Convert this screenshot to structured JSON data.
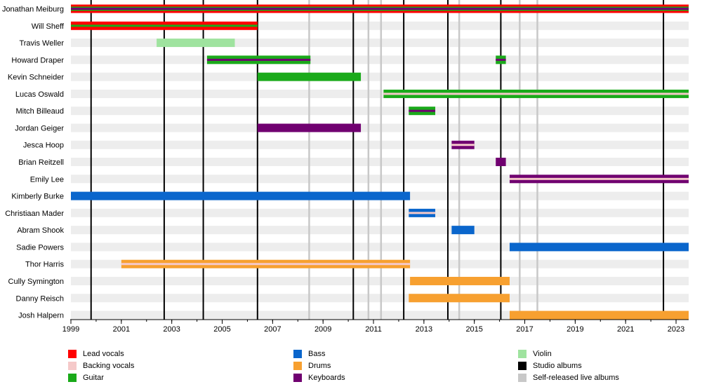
{
  "chart_data": {
    "type": "timeline",
    "x_range": [
      1999,
      2023.5
    ],
    "x_ticks": [
      1999,
      2001,
      2003,
      2005,
      2007,
      2009,
      2011,
      2013,
      2015,
      2017,
      2019,
      2021,
      2023
    ],
    "grid": true,
    "colors": {
      "lead_vocals": "#ff0000",
      "backing_vocals": "#f5c9c9",
      "guitar": "#1aaa1a",
      "violin": "#9fe39f",
      "bass": "#0a66cc",
      "drums": "#f7a030",
      "keyboards": "#700070",
      "studio_albums": "#000000",
      "live_albums": "#c8c8c8"
    },
    "members": [
      {
        "name": "Jonathan Meiburg",
        "periods": [
          {
            "start": 1999,
            "end": 2023.5,
            "roles": [
              "lead_vocals",
              "guitar",
              "keyboards"
            ]
          }
        ]
      },
      {
        "name": "Will Sheff",
        "periods": [
          {
            "start": 1999,
            "end": 2006.4,
            "roles": [
              "lead_vocals",
              "guitar"
            ]
          }
        ]
      },
      {
        "name": "Travis Weller",
        "periods": [
          {
            "start": 2002.4,
            "end": 2005.5,
            "roles": [
              "violin"
            ]
          }
        ]
      },
      {
        "name": "Howard Draper",
        "periods": [
          {
            "start": 2004.4,
            "end": 2008.5,
            "roles": [
              "guitar",
              "keyboards"
            ]
          },
          {
            "start": 2015.85,
            "end": 2016.25,
            "roles": [
              "guitar",
              "keyboards"
            ]
          }
        ]
      },
      {
        "name": "Kevin Schneider",
        "periods": [
          {
            "start": 2006.4,
            "end": 2010.5,
            "roles": [
              "guitar"
            ]
          }
        ]
      },
      {
        "name": "Lucas Oswald",
        "periods": [
          {
            "start": 2011.4,
            "end": 2023.5,
            "roles": [
              "guitar",
              "backing_vocals"
            ]
          }
        ]
      },
      {
        "name": "Mitch Billeaud",
        "periods": [
          {
            "start": 2012.4,
            "end": 2013.45,
            "roles": [
              "guitar",
              "keyboards"
            ]
          }
        ]
      },
      {
        "name": "Jordan Geiger",
        "periods": [
          {
            "start": 2006.4,
            "end": 2010.5,
            "roles": [
              "keyboards"
            ]
          }
        ]
      },
      {
        "name": "Jesca Hoop",
        "periods": [
          {
            "start": 2014.1,
            "end": 2015.0,
            "roles": [
              "keyboards",
              "backing_vocals"
            ]
          }
        ]
      },
      {
        "name": "Brian Reitzell",
        "periods": [
          {
            "start": 2015.85,
            "end": 2016.25,
            "roles": [
              "keyboards"
            ]
          }
        ]
      },
      {
        "name": "Emily Lee",
        "periods": [
          {
            "start": 2016.4,
            "end": 2023.5,
            "roles": [
              "keyboards",
              "backing_vocals"
            ]
          }
        ]
      },
      {
        "name": "Kimberly Burke",
        "periods": [
          {
            "start": 1999,
            "end": 2012.45,
            "roles": [
              "bass"
            ]
          }
        ]
      },
      {
        "name": "Christiaan Mader",
        "periods": [
          {
            "start": 2012.4,
            "end": 2013.45,
            "roles": [
              "bass",
              "backing_vocals"
            ]
          }
        ]
      },
      {
        "name": "Abram Shook",
        "periods": [
          {
            "start": 2014.1,
            "end": 2015.0,
            "roles": [
              "bass"
            ]
          }
        ]
      },
      {
        "name": "Sadie Powers",
        "periods": [
          {
            "start": 2016.4,
            "end": 2023.5,
            "roles": [
              "bass"
            ]
          }
        ]
      },
      {
        "name": "Thor Harris",
        "periods": [
          {
            "start": 2001.0,
            "end": 2012.45,
            "roles": [
              "drums",
              "backing_vocals"
            ]
          }
        ]
      },
      {
        "name": "Cully Symington",
        "periods": [
          {
            "start": 2012.45,
            "end": 2016.4,
            "roles": [
              "drums"
            ]
          }
        ]
      },
      {
        "name": "Danny Reisch",
        "periods": [
          {
            "start": 2012.4,
            "end": 2016.4,
            "roles": [
              "drums"
            ]
          }
        ]
      },
      {
        "name": "Josh Halpern",
        "periods": [
          {
            "start": 2016.4,
            "end": 2023.5,
            "roles": [
              "drums"
            ]
          }
        ]
      }
    ],
    "studio_albums": [
      1999.8,
      2002.7,
      2004.25,
      2006.4,
      2010.2,
      2012.2,
      2013.95,
      2016.05,
      2022.5
    ],
    "live_albums": [
      2008.45,
      2010.8,
      2011.3,
      2014.4,
      2016.8,
      2017.5
    ]
  },
  "legend": [
    {
      "label": "Lead vocals",
      "color": "#ff0000"
    },
    {
      "label": "Backing vocals",
      "color": "#f5c9c9"
    },
    {
      "label": "Guitar",
      "color": "#1aaa1a"
    },
    {
      "label": "Bass",
      "color": "#0a66cc"
    },
    {
      "label": "Drums",
      "color": "#f7a030"
    },
    {
      "label": "Keyboards",
      "color": "#700070"
    },
    {
      "label": "Violin",
      "color": "#9fe39f"
    },
    {
      "label": "Studio albums",
      "color": "#000000"
    },
    {
      "label": "Self-released live albums",
      "color": "#c8c8c8"
    }
  ]
}
